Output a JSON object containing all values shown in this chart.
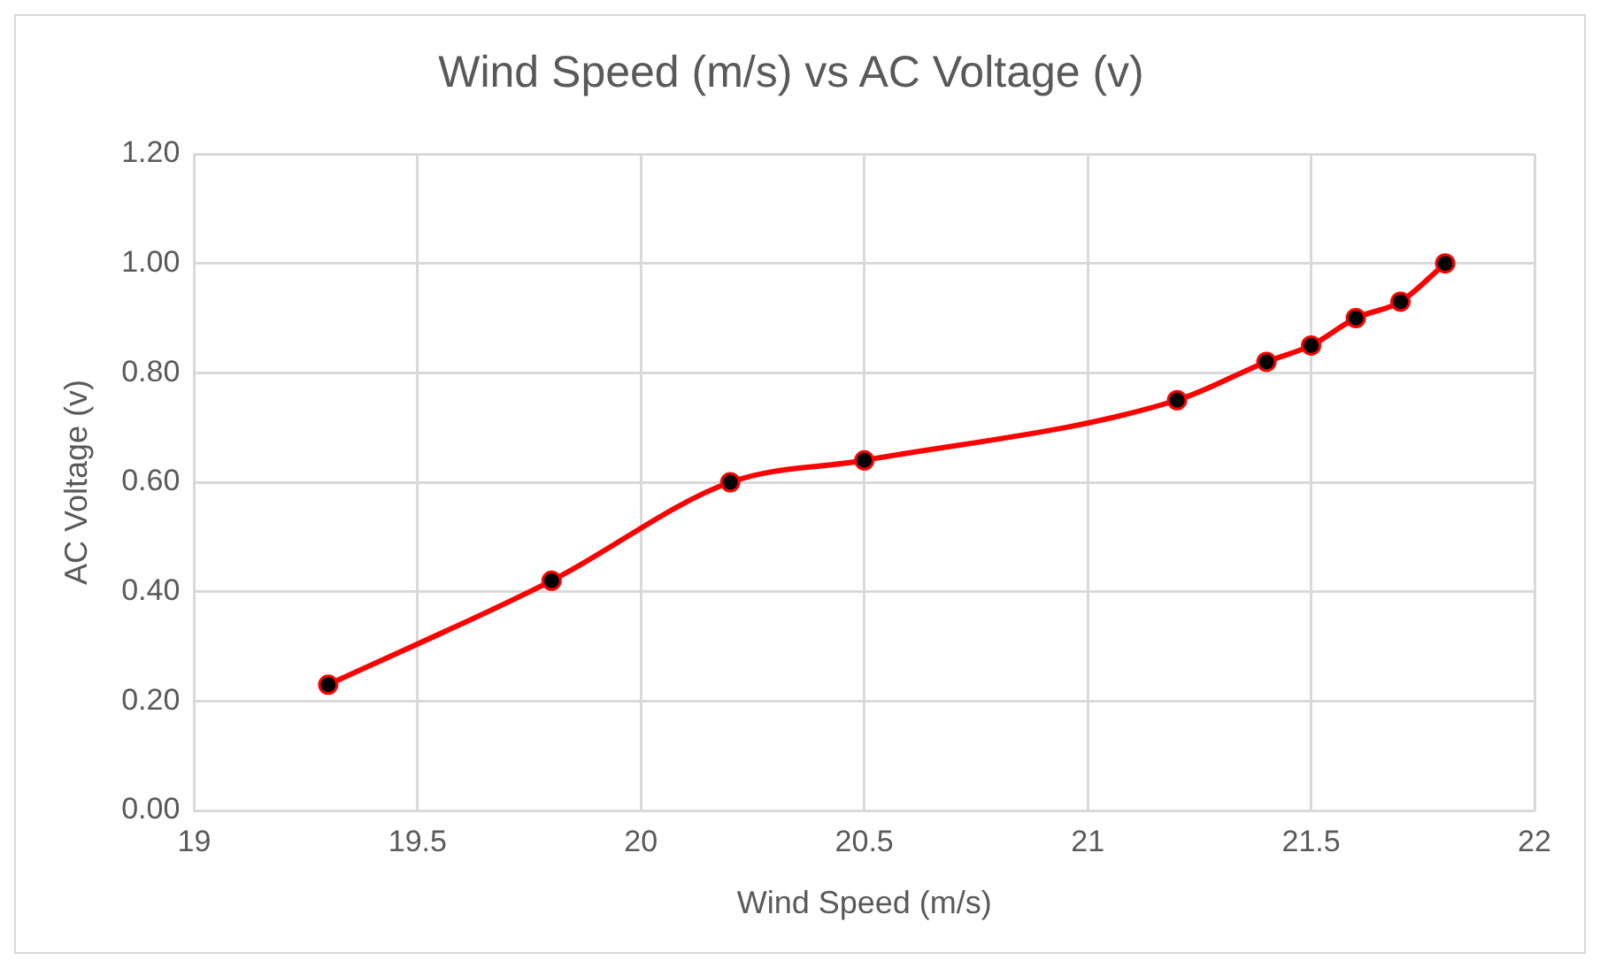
{
  "chart_data": {
    "type": "line",
    "title": "Wind Speed (m/s) vs AC Voltage (v)",
    "xlabel": "Wind Speed (m/s)",
    "ylabel": "AC Voltage (v)",
    "x": [
      19.3,
      19.8,
      20.2,
      20.5,
      21.2,
      21.4,
      21.5,
      21.6,
      21.7,
      21.8
    ],
    "series": [
      {
        "color": "#ff0000",
        "values": [
          0.23,
          0.42,
          0.6,
          0.64,
          0.75,
          0.82,
          0.85,
          0.9,
          0.93,
          1.0
        ]
      }
    ],
    "xlim": [
      19,
      22
    ],
    "xticks": [
      19,
      19.5,
      20,
      20.5,
      21,
      21.5,
      22
    ],
    "ylim": [
      0,
      1.2
    ],
    "yticks": [
      {
        "value": 0,
        "label": "0.00"
      },
      {
        "value": 0.2,
        "label": "0.20"
      },
      {
        "value": 0.4,
        "label": "0.40"
      },
      {
        "value": 0.6,
        "label": "0.60"
      },
      {
        "value": 0.8,
        "label": "0.80"
      },
      {
        "value": 1.0,
        "label": "1.00"
      },
      {
        "value": 1.2,
        "label": "1.20"
      }
    ],
    "grid": true,
    "legend": false,
    "marker": "circle",
    "line_style": "solid"
  }
}
